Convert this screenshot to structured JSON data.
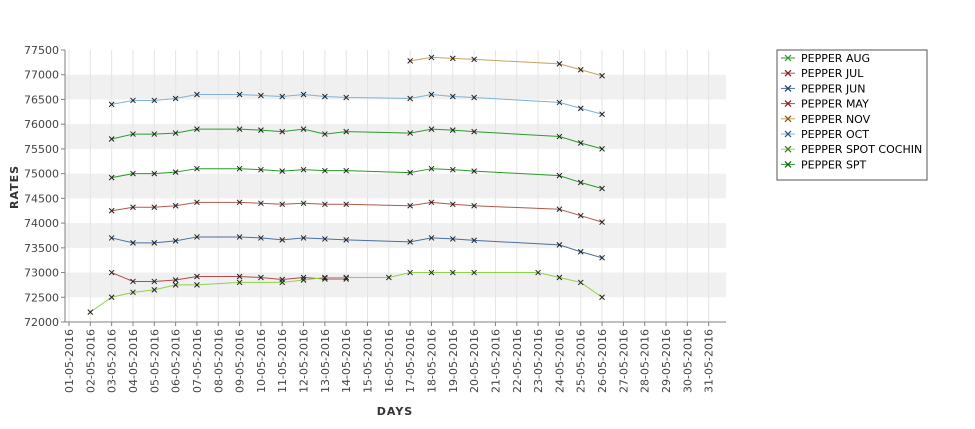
{
  "chart_data": {
    "type": "line",
    "xlabel": "DAYS",
    "ylabel": "RATES",
    "ylim": [
      72000,
      77500
    ],
    "y_ticks": [
      72000,
      72500,
      73000,
      73500,
      74000,
      74500,
      75000,
      75500,
      76000,
      76500,
      77000,
      77500
    ],
    "y_tick_labels": [
      "72000",
      "72500",
      "73000",
      "73500",
      "74000",
      "74500",
      "75000",
      "75500",
      "76000",
      "76500",
      "77000",
      "77500"
    ],
    "x_tick_labels": [
      "01-05-2016",
      "02-05-2016",
      "03-05-2016",
      "04-05-2016",
      "05-05-2016",
      "06-05-2016",
      "07-05-2016",
      "08-05-2016",
      "09-05-2016",
      "10-05-2016",
      "11-05-2016",
      "12-05-2016",
      "13-05-2016",
      "14-05-2016",
      "15-05-2016",
      "16-05-2016",
      "17-05-2016",
      "18-05-2016",
      "19-05-2016",
      "20-05-2016",
      "21-05-2016",
      "22-05-2016",
      "23-05-2016",
      "24-05-2016",
      "25-05-2016",
      "26-05-2016",
      "27-05-2016",
      "28-05-2016",
      "29-05-2016",
      "30-05-2016",
      "31-05-2016"
    ],
    "grid": true,
    "legend_position": "right",
    "series": [
      {
        "name": "PEPPER AUG",
        "color": "#2e9a2e",
        "marker_color": "#2e9a2e",
        "points": [
          [
            3,
            75700
          ],
          [
            4,
            75800
          ],
          [
            5,
            75800
          ],
          [
            6,
            75820
          ],
          [
            7,
            75900
          ],
          [
            9,
            75900
          ],
          [
            10,
            75880
          ],
          [
            11,
            75850
          ],
          [
            12,
            75900
          ],
          [
            13,
            75800
          ],
          [
            14,
            75850
          ],
          [
            17,
            75820
          ],
          [
            18,
            75900
          ],
          [
            19,
            75880
          ],
          [
            20,
            75850
          ],
          [
            24,
            75750
          ],
          [
            25,
            75620
          ],
          [
            26,
            75500
          ]
        ]
      },
      {
        "name": "PEPPER JUL",
        "color": "#b05a4a",
        "marker_color": "#8b1a1a",
        "points": [
          [
            3,
            74250
          ],
          [
            4,
            74320
          ],
          [
            5,
            74320
          ],
          [
            6,
            74350
          ],
          [
            7,
            74420
          ],
          [
            9,
            74420
          ],
          [
            10,
            74400
          ],
          [
            11,
            74380
          ],
          [
            12,
            74400
          ],
          [
            13,
            74380
          ],
          [
            14,
            74380
          ],
          [
            17,
            74350
          ],
          [
            18,
            74420
          ],
          [
            19,
            74380
          ],
          [
            20,
            74350
          ],
          [
            24,
            74280
          ],
          [
            25,
            74150
          ],
          [
            26,
            74020
          ]
        ]
      },
      {
        "name": "PEPPER JUN",
        "color": "#4a6fa0",
        "marker_color": "#1f3b73",
        "points": [
          [
            3,
            73700
          ],
          [
            4,
            73600
          ],
          [
            5,
            73600
          ],
          [
            6,
            73640
          ],
          [
            7,
            73720
          ],
          [
            9,
            73720
          ],
          [
            10,
            73700
          ],
          [
            11,
            73660
          ],
          [
            12,
            73700
          ],
          [
            13,
            73680
          ],
          [
            14,
            73660
          ],
          [
            17,
            73620
          ],
          [
            18,
            73700
          ],
          [
            19,
            73680
          ],
          [
            20,
            73650
          ],
          [
            24,
            73560
          ],
          [
            25,
            73420
          ],
          [
            26,
            73300
          ]
        ]
      },
      {
        "name": "PEPPER MAY",
        "color": "#b04a4a",
        "marker_color": "#8b1a1a",
        "points": [
          [
            3,
            73000
          ],
          [
            4,
            72820
          ],
          [
            5,
            72820
          ],
          [
            6,
            72850
          ],
          [
            7,
            72920
          ],
          [
            9,
            72920
          ],
          [
            10,
            72900
          ],
          [
            11,
            72860
          ],
          [
            12,
            72900
          ],
          [
            13,
            72870
          ],
          [
            14,
            72870
          ]
        ]
      },
      {
        "name": "PEPPER NOV",
        "color": "#c8a060",
        "marker_color": "#8b5a1a",
        "points": [
          [
            17,
            77280
          ],
          [
            18,
            77350
          ],
          [
            19,
            77330
          ],
          [
            20,
            77310
          ],
          [
            24,
            77220
          ],
          [
            25,
            77100
          ],
          [
            26,
            76980
          ]
        ]
      },
      {
        "name": "PEPPER OCT",
        "color": "#7fb2d8",
        "marker_color": "#2a4f7a",
        "points": [
          [
            3,
            76400
          ],
          [
            4,
            76480
          ],
          [
            5,
            76480
          ],
          [
            6,
            76520
          ],
          [
            7,
            76600
          ],
          [
            9,
            76600
          ],
          [
            10,
            76580
          ],
          [
            11,
            76560
          ],
          [
            12,
            76600
          ],
          [
            13,
            76560
          ],
          [
            14,
            76540
          ],
          [
            17,
            76520
          ],
          [
            18,
            76600
          ],
          [
            19,
            76560
          ],
          [
            20,
            76540
          ],
          [
            24,
            76440
          ],
          [
            25,
            76320
          ],
          [
            26,
            76200
          ]
        ]
      },
      {
        "name": "PEPPER SPOT COCHIN",
        "color": "#8ed14a",
        "marker_color": "#3a7a1a",
        "points": [
          [
            2,
            72200
          ],
          [
            3,
            72500
          ],
          [
            4,
            72600
          ],
          [
            5,
            72650
          ],
          [
            6,
            72750
          ],
          [
            7,
            72750
          ],
          [
            9,
            72800
          ],
          [
            11,
            72800
          ],
          [
            12,
            72850
          ],
          [
            13,
            72900
          ],
          [
            14,
            72900
          ],
          [
            16,
            72900
          ],
          [
            17,
            73000
          ],
          [
            18,
            73000
          ],
          [
            19,
            73000
          ],
          [
            20,
            73000
          ],
          [
            23,
            73000
          ],
          [
            24,
            72900
          ],
          [
            25,
            72800
          ],
          [
            26,
            72500
          ]
        ]
      },
      {
        "name": "PEPPER SPT",
        "color": "#2a9a2a",
        "marker_color": "#1a5a1a",
        "points": [
          [
            3,
            74920
          ],
          [
            4,
            75000
          ],
          [
            5,
            75000
          ],
          [
            6,
            75030
          ],
          [
            7,
            75100
          ],
          [
            9,
            75100
          ],
          [
            10,
            75080
          ],
          [
            11,
            75050
          ],
          [
            12,
            75080
          ],
          [
            13,
            75060
          ],
          [
            14,
            75060
          ],
          [
            17,
            75020
          ],
          [
            18,
            75100
          ],
          [
            19,
            75080
          ],
          [
            20,
            75050
          ],
          [
            24,
            74960
          ],
          [
            25,
            74820
          ],
          [
            26,
            74700
          ]
        ]
      }
    ]
  }
}
